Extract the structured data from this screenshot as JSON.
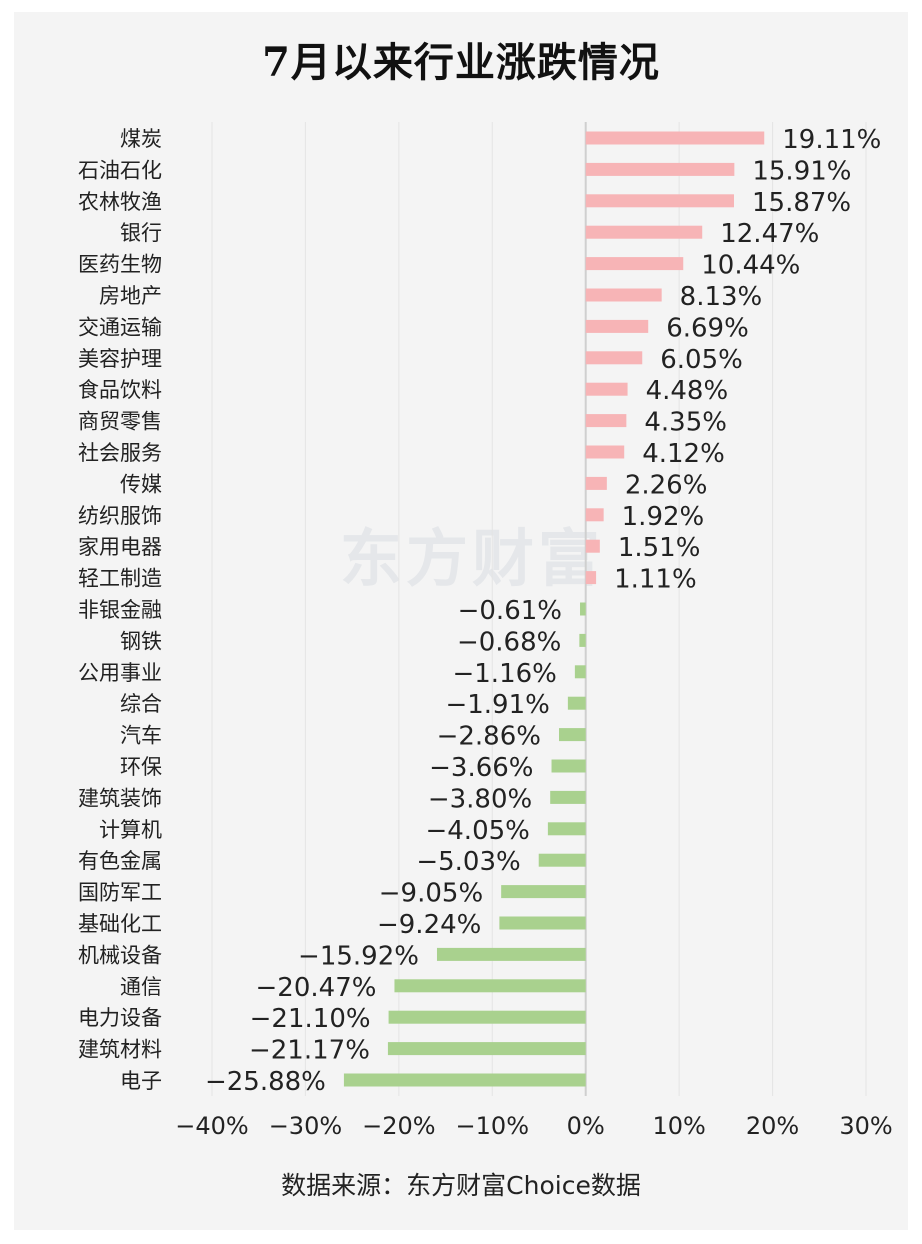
{
  "title": "7月以来行业涨跌情况",
  "source": "数据来源：东方财富Choice数据",
  "watermark": "东方财富",
  "colors": {
    "positive": "#f7b4b6",
    "negative": "#a9d18e",
    "grid": "#e4e4e4",
    "axis": "#cfcfcf",
    "background": "#f4f4f4"
  },
  "chart_data": {
    "type": "bar",
    "orientation": "horizontal",
    "categories": [
      "煤炭",
      "石油石化",
      "农林牧渔",
      "银行",
      "医药生物",
      "房地产",
      "交通运输",
      "美容护理",
      "食品饮料",
      "商贸零售",
      "社会服务",
      "传媒",
      "纺织服饰",
      "家用电器",
      "轻工制造",
      "非银金融",
      "钢铁",
      "公用事业",
      "综合",
      "汽车",
      "环保",
      "建筑装饰",
      "计算机",
      "有色金属",
      "国防军工",
      "基础化工",
      "机械设备",
      "通信",
      "电力设备",
      "建筑材料",
      "电子"
    ],
    "values": [
      19.11,
      15.91,
      15.87,
      12.47,
      10.44,
      8.13,
      6.69,
      6.05,
      4.48,
      4.35,
      4.12,
      2.26,
      1.92,
      1.51,
      1.11,
      -0.61,
      -0.68,
      -1.16,
      -1.91,
      -2.86,
      -3.66,
      -3.8,
      -4.05,
      -5.03,
      -9.05,
      -9.24,
      -15.92,
      -20.47,
      -21.1,
      -21.17,
      -25.88
    ],
    "value_labels": [
      "19.11%",
      "15.91%",
      "15.87%",
      "12.47%",
      "10.44%",
      "8.13%",
      "6.69%",
      "6.05%",
      "4.48%",
      "4.35%",
      "4.12%",
      "2.26%",
      "1.92%",
      "1.51%",
      "1.11%",
      "−0.61%",
      "−0.68%",
      "−1.16%",
      "−1.91%",
      "−2.86%",
      "−3.66%",
      "−3.80%",
      "−4.05%",
      "−5.03%",
      "−9.05%",
      "−9.24%",
      "−15.92%",
      "−20.47%",
      "−21.10%",
      "−21.17%",
      "−25.88%"
    ],
    "xlim": [
      -40,
      30
    ],
    "xticks": [
      -40,
      -30,
      -20,
      -10,
      0,
      10,
      20,
      30
    ],
    "xtick_labels": [
      "−40%",
      "−30%",
      "−20%",
      "−10%",
      "0%",
      "10%",
      "20%",
      "30%"
    ],
    "grid": true,
    "xlabel": "",
    "ylabel": ""
  }
}
